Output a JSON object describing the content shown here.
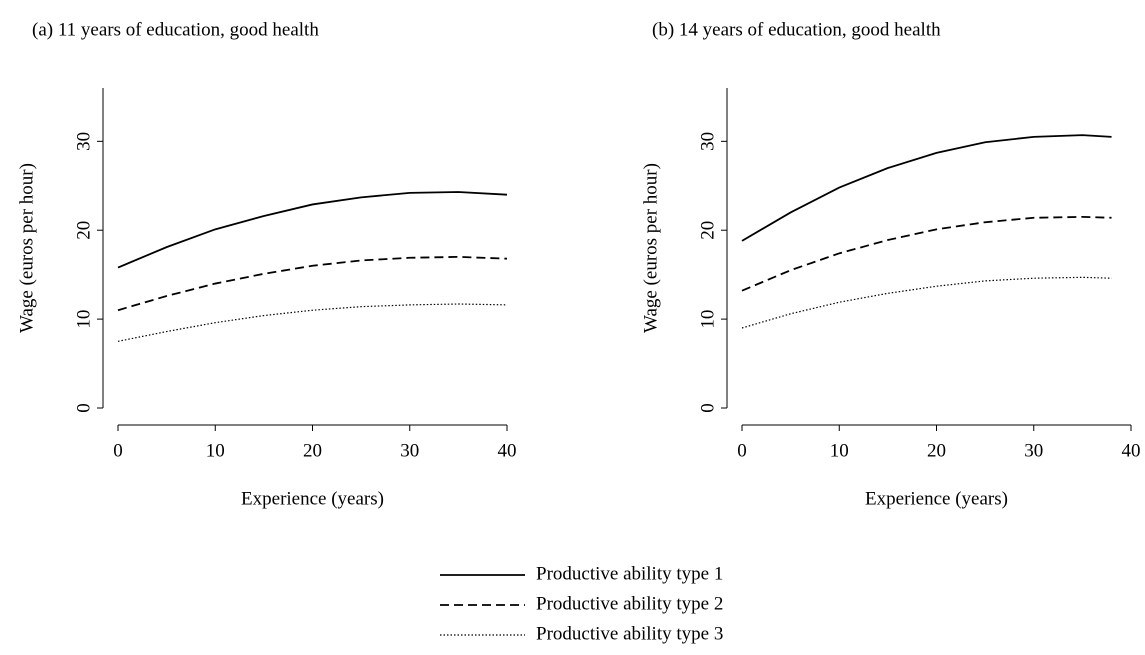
{
  "chart_data": [
    {
      "type": "line",
      "title": "(a) 11 years of education, good health",
      "x_label": "Experience (years)",
      "y_label": "Wage (euros per hour)",
      "x": [
        0,
        5,
        10,
        15,
        20,
        25,
        30,
        35,
        40
      ],
      "series": [
        {
          "dash": "solid",
          "color": "#000000",
          "values": [
            15.8,
            18.1,
            20.1,
            21.6,
            22.9,
            23.7,
            24.2,
            24.3,
            24.0
          ]
        },
        {
          "dash": "dashed",
          "color": "#000000",
          "values": [
            11.0,
            12.6,
            14.0,
            15.1,
            16.0,
            16.6,
            16.9,
            17.0,
            16.8
          ]
        },
        {
          "dash": "dotted",
          "color": "#000000",
          "values": [
            7.5,
            8.6,
            9.6,
            10.4,
            11.0,
            11.4,
            11.6,
            11.7,
            11.6
          ]
        }
      ],
      "xlim": [
        0,
        40
      ],
      "xticks": [
        0,
        10,
        20,
        30,
        40
      ],
      "ylim": [
        0,
        36
      ],
      "yticks": [
        0,
        10,
        20,
        30
      ]
    },
    {
      "type": "line",
      "title": "(b) 14 years of education, good health",
      "x_label": "Experience (years)",
      "y_label": "Wage (euros per hour)",
      "x": [
        0,
        5,
        10,
        15,
        20,
        25,
        30,
        35,
        38
      ],
      "series": [
        {
          "dash": "solid",
          "color": "#000000",
          "values": [
            18.8,
            22.0,
            24.8,
            27.0,
            28.7,
            29.9,
            30.5,
            30.7,
            30.5
          ]
        },
        {
          "dash": "dashed",
          "color": "#000000",
          "values": [
            13.2,
            15.5,
            17.4,
            18.9,
            20.1,
            20.9,
            21.4,
            21.5,
            21.4
          ]
        },
        {
          "dash": "dotted",
          "color": "#000000",
          "values": [
            9.0,
            10.6,
            11.9,
            12.9,
            13.7,
            14.3,
            14.6,
            14.7,
            14.6
          ]
        }
      ],
      "xlim": [
        0,
        40
      ],
      "xticks": [
        0,
        10,
        20,
        30,
        40
      ],
      "ylim": [
        0,
        36
      ],
      "yticks": [
        0,
        10,
        20,
        30
      ]
    }
  ],
  "legend": [
    "Productive ability type 1",
    "Productive ability type 2",
    "Productive ability type 3"
  ]
}
